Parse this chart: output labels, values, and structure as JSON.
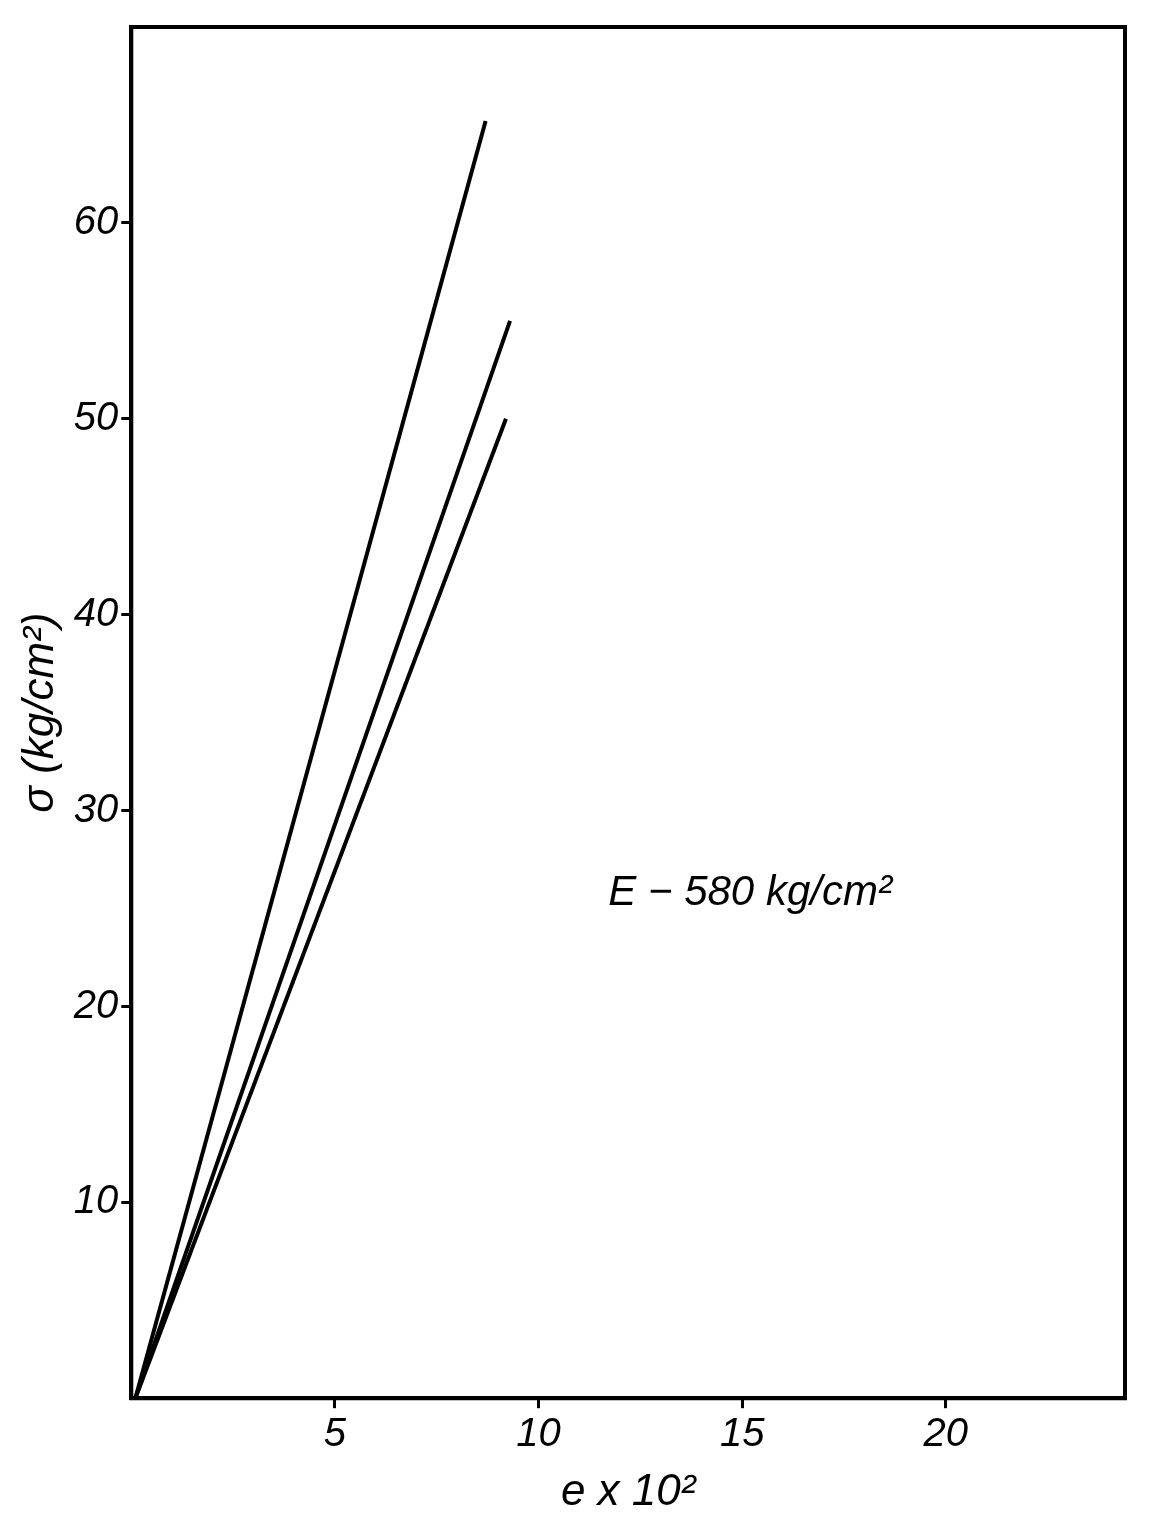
{
  "chart_data": {
    "type": "line",
    "xlabel": "e x 10²",
    "ylabel": "σ (kg/cm²)",
    "annotations": [
      "E − 580 kg/cm²"
    ],
    "series": [
      {
        "color": "#000000",
        "x": [
          0.1,
          8.7
        ],
        "values": [
          0,
          65.2
        ]
      },
      {
        "color": "#000000",
        "x": [
          0.1,
          9.3
        ],
        "values": [
          0,
          55
        ]
      },
      {
        "color": "#000000",
        "x": [
          0.1,
          9.2
        ],
        "values": [
          0,
          50
        ]
      }
    ],
    "xlim": [
      0,
      24.4
    ],
    "xticks": [
      5,
      10,
      15,
      20
    ],
    "ylim": [
      0,
      70
    ],
    "yticks": [
      10,
      20,
      30,
      40,
      50,
      60
    ],
    "grid": false,
    "legend": false,
    "marker": "none",
    "line_style": "solid"
  }
}
